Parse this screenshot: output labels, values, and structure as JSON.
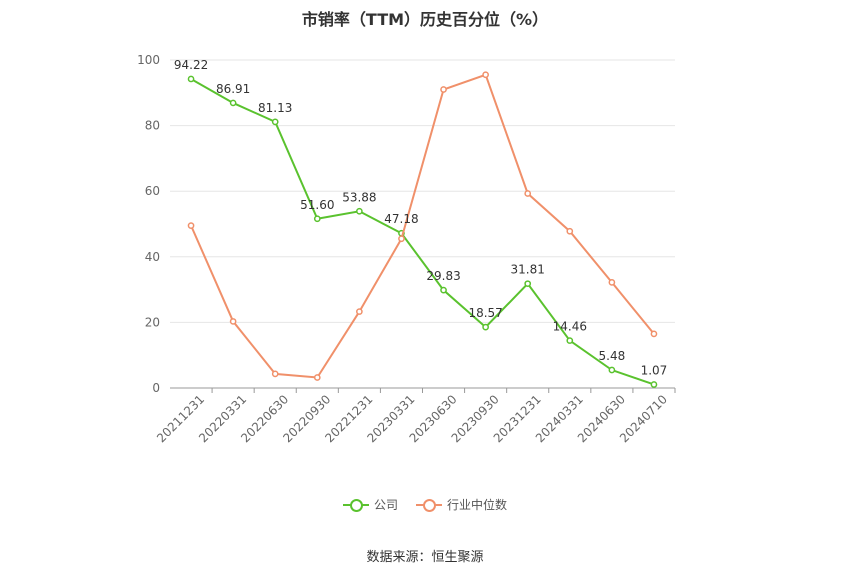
{
  "chart_data": {
    "type": "line",
    "title": "市销率（TTM）历史百分位（%）",
    "categories": [
      "20211231",
      "20220331",
      "20220630",
      "20220930",
      "20221231",
      "20230331",
      "20230630",
      "20230930",
      "20231231",
      "20240331",
      "20240630",
      "20240710"
    ],
    "series": [
      {
        "name": "公司",
        "color": "#5ac22e",
        "values": [
          94.22,
          86.91,
          81.13,
          51.6,
          53.88,
          47.18,
          29.83,
          18.57,
          31.81,
          14.46,
          5.48,
          1.07
        ],
        "labels": [
          "94.22",
          "86.91",
          "81.13",
          "51.60",
          "53.88",
          "47.18",
          "29.83",
          "18.57",
          "31.81",
          "14.46",
          "5.48",
          "1.07"
        ]
      },
      {
        "name": "行业中位数",
        "color": "#f0906a",
        "values": [
          49.5,
          20.3,
          4.3,
          3.2,
          23.3,
          45.5,
          91.0,
          95.5,
          59.3,
          47.8,
          32.2,
          16.5
        ]
      }
    ],
    "yticks": [
      0,
      20,
      40,
      60,
      80,
      100
    ],
    "ylim": [
      0,
      100
    ],
    "grid": true,
    "legend_position": "bottom"
  },
  "footer": {
    "source": "数据来源：恒生聚源"
  }
}
